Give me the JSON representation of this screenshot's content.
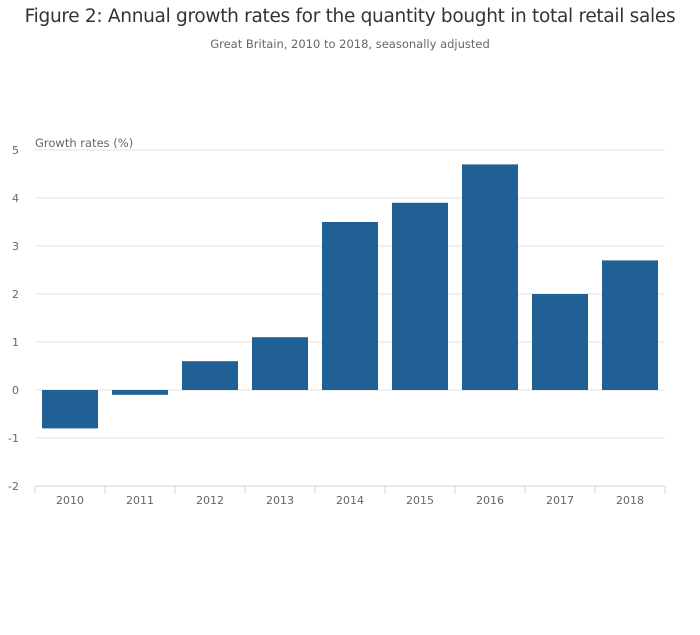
{
  "chart_data": {
    "type": "bar",
    "title": "Figure 2: Annual growth rates for the quantity bought in total retail sales",
    "subtitle": "Great Britain, 2010 to 2018, seasonally adjusted",
    "xlabel": "",
    "ylabel": "Growth rates (%)",
    "categories": [
      "2010",
      "2011",
      "2012",
      "2013",
      "2014",
      "2015",
      "2016",
      "2017",
      "2018"
    ],
    "values": [
      -0.8,
      -0.1,
      0.6,
      1.1,
      3.5,
      3.9,
      4.7,
      2.0,
      2.7
    ],
    "ylim": [
      -2,
      5
    ],
    "yticks": [
      5,
      4,
      3,
      2,
      1,
      0,
      -1,
      -2
    ],
    "grid": true,
    "legend": "none",
    "bar_color": "#206095"
  }
}
